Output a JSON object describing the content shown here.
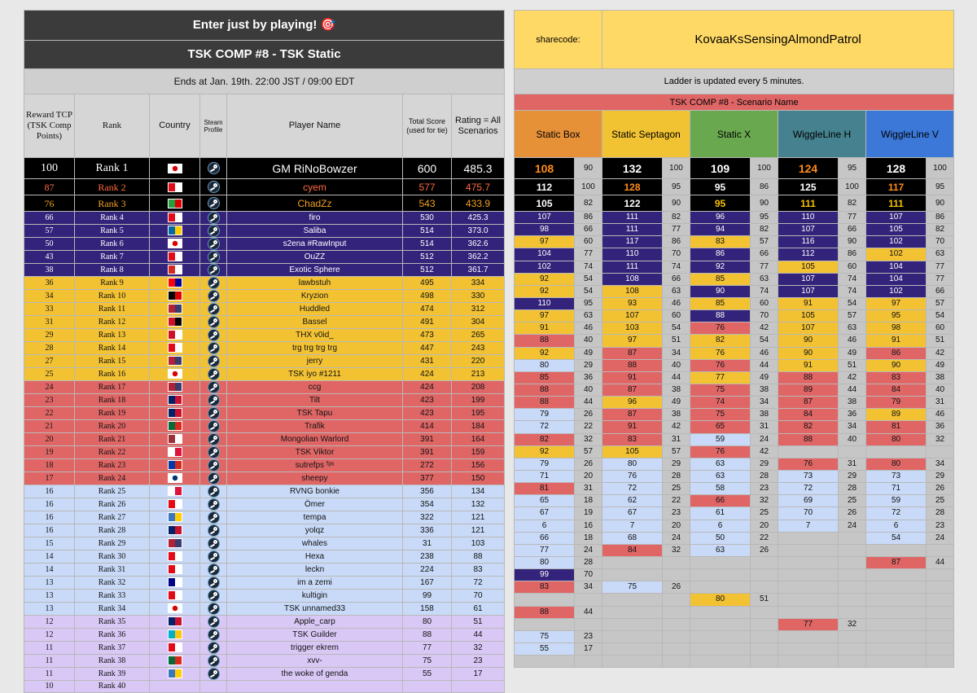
{
  "header": {
    "banner": "Enter just by playing! 🎯",
    "comp_title": "TSK COMP #8 - TSK Static",
    "ends": "Ends at Jan. 19th. 22:00 JST / 09:00 EDT"
  },
  "columns": {
    "reward": "Reward TCP (TSK Comp Points)",
    "rank": "Rank",
    "country": "Country",
    "steam": "Steam Profile",
    "player": "Player Name",
    "total": "Total Score (used for tie)",
    "rating": "Rating = All Scenarios"
  },
  "colors": {
    "black": "#000000",
    "purple": "#33237a",
    "yellow": "#f3c233",
    "red": "#e06666",
    "blue": "#c9daf8",
    "lavender": "#d9c8f6"
  },
  "players": [
    {
      "tcp": "100",
      "rank": "Rank 1",
      "country": "Japan",
      "name": "GM RiNoBowzer",
      "total": "600",
      "rating": "485.3",
      "tier": "black"
    },
    {
      "tcp": "87",
      "rank": "Rank 2",
      "country": "Turkey",
      "name": "cyem",
      "total": "577",
      "rating": "475.7",
      "tier": "black"
    },
    {
      "tcp": "76",
      "rank": "Rank 3",
      "country": "Iran",
      "name": "ChadZz",
      "total": "543",
      "rating": "433.9",
      "tier": "black"
    },
    {
      "tcp": "66",
      "rank": "Rank 4",
      "country": "Turkey",
      "name": "firo",
      "total": "530",
      "rating": "425.3",
      "tier": "purple"
    },
    {
      "tcp": "57",
      "rank": "Rank 5",
      "country": "Sweden",
      "name": "Saliba",
      "total": "514",
      "rating": "373.0",
      "tier": "purple"
    },
    {
      "tcp": "50",
      "rank": "Rank 6",
      "country": "Japan",
      "name": "s2ena #RawInput",
      "total": "514",
      "rating": "362.6",
      "tier": "purple"
    },
    {
      "tcp": "43",
      "rank": "Rank 7",
      "country": "Turkey",
      "name": "OuZZ",
      "total": "512",
      "rating": "362.2",
      "tier": "purple"
    },
    {
      "tcp": "38",
      "rank": "Rank 8",
      "country": "Canada",
      "name": "Exotic Sphere",
      "total": "512",
      "rating": "361.7",
      "tier": "purple"
    },
    {
      "tcp": "36",
      "rank": "Rank 9",
      "country": "Taiwan",
      "name": "lawbstuh",
      "total": "495",
      "rating": "334",
      "tier": "yellow"
    },
    {
      "tcp": "34",
      "rank": "Rank 10",
      "country": "Germany",
      "name": "Kryzion",
      "total": "498",
      "rating": "330",
      "tier": "yellow"
    },
    {
      "tcp": "33",
      "rank": "Rank 11",
      "country": "USA",
      "name": "Huddled",
      "total": "474",
      "rating": "312",
      "tier": "yellow"
    },
    {
      "tcp": "31",
      "rank": "Rank 12",
      "country": "Egypt",
      "name": "Bassel",
      "total": "491",
      "rating": "304",
      "tier": "yellow"
    },
    {
      "tcp": "29",
      "rank": "Rank 13",
      "country": "Bahrain",
      "name": "THX v0id_",
      "total": "473",
      "rating": "265",
      "tier": "yellow"
    },
    {
      "tcp": "28",
      "rank": "Rank 14",
      "country": "Turkey",
      "name": "trg trg trg trg",
      "total": "447",
      "rating": "243",
      "tier": "yellow"
    },
    {
      "tcp": "27",
      "rank": "Rank 15",
      "country": "USA",
      "name": "jerry",
      "total": "431",
      "rating": "220",
      "tier": "yellow"
    },
    {
      "tcp": "25",
      "rank": "Rank 16",
      "country": "Japan",
      "name": "TSK iyo #1211",
      "total": "424",
      "rating": "213",
      "tier": "yellow"
    },
    {
      "tcp": "24",
      "rank": "Rank 17",
      "country": "USA",
      "name": "ccg",
      "total": "424",
      "rating": "208",
      "tier": "red"
    },
    {
      "tcp": "23",
      "rank": "Rank 18",
      "country": "UK",
      "name": "Tilt",
      "total": "423",
      "rating": "199",
      "tier": "red"
    },
    {
      "tcp": "22",
      "rank": "Rank 19",
      "country": "UK",
      "name": "TSK Tapu",
      "total": "423",
      "rating": "195",
      "tier": "red"
    },
    {
      "tcp": "21",
      "rank": "Rank 20",
      "country": "Portugal",
      "name": "Trafik",
      "total": "414",
      "rating": "184",
      "tier": "red"
    },
    {
      "tcp": "20",
      "rank": "Rank 21",
      "country": "Latvia",
      "name": "Mongolian Warlord",
      "total": "391",
      "rating": "164",
      "tier": "red"
    },
    {
      "tcp": "19",
      "rank": "Rank 22",
      "country": "Poland",
      "name": "TSK Viktor",
      "total": "391",
      "rating": "159",
      "tier": "red"
    },
    {
      "tcp": "18",
      "rank": "Rank 23",
      "country": "Chile",
      "name": "sutrefps ᶠᵖˢ",
      "total": "272",
      "rating": "156",
      "tier": "red"
    },
    {
      "tcp": "17",
      "rank": "Rank 24",
      "country": "Korea",
      "name": "sheepy",
      "total": "377",
      "rating": "150",
      "tier": "red"
    },
    {
      "tcp": "16",
      "rank": "Rank 25",
      "country": "Poland",
      "name": "RVNG bonkie",
      "total": "356",
      "rating": "134",
      "tier": "blue"
    },
    {
      "tcp": "16",
      "rank": "Rank 26",
      "country": "Turkey",
      "name": "Ömer",
      "total": "354",
      "rating": "132",
      "tier": "blue"
    },
    {
      "tcp": "16",
      "rank": "Rank 27",
      "country": "Other",
      "name": "tempa",
      "total": "322",
      "rating": "121",
      "tier": "blue"
    },
    {
      "tcp": "16",
      "rank": "Rank 28",
      "country": "UK",
      "name": "yolqz",
      "total": "336",
      "rating": "121",
      "tier": "blue"
    },
    {
      "tcp": "15",
      "rank": "Rank 29",
      "country": "USA",
      "name": "whales",
      "total": "31",
      "rating": "103",
      "tier": "blue"
    },
    {
      "tcp": "14",
      "rank": "Rank 30",
      "country": "Turkey",
      "name": "Hexa",
      "total": "238",
      "rating": "88",
      "tier": "blue"
    },
    {
      "tcp": "14",
      "rank": "Rank 31",
      "country": "Turkey",
      "name": "leckn",
      "total": "224",
      "rating": "83",
      "tier": "blue"
    },
    {
      "tcp": "13",
      "rank": "Rank 32",
      "country": "Australia",
      "name": "im a zemi",
      "total": "167",
      "rating": "72",
      "tier": "blue"
    },
    {
      "tcp": "13",
      "rank": "Rank 33",
      "country": "Turkey",
      "name": "kultigin",
      "total": "99",
      "rating": "70",
      "tier": "blue"
    },
    {
      "tcp": "13",
      "rank": "Rank 34",
      "country": "Japan",
      "name": "TSK unnamed33",
      "total": "158",
      "rating": "61",
      "tier": "blue"
    },
    {
      "tcp": "12",
      "rank": "Rank 35",
      "country": "UK",
      "name": "Apple_carp",
      "total": "80",
      "rating": "51",
      "tier": "lav"
    },
    {
      "tcp": "12",
      "rank": "Rank 36",
      "country": "Kazakhstan",
      "name": "TSK Guilder",
      "total": "88",
      "rating": "44",
      "tier": "lav"
    },
    {
      "tcp": "11",
      "rank": "Rank 37",
      "country": "Turkey",
      "name": "trigger ekrem",
      "total": "77",
      "rating": "32",
      "tier": "lav"
    },
    {
      "tcp": "11",
      "rank": "Rank 38",
      "country": "Portugal",
      "name": "xvv-",
      "total": "75",
      "rating": "23",
      "tier": "lav"
    },
    {
      "tcp": "11",
      "rank": "Rank 39",
      "country": "Other",
      "name": "the woke of genda",
      "total": "55",
      "rating": "17",
      "tier": "lav"
    },
    {
      "tcp": "10",
      "rank": "Rank 40",
      "country": "",
      "name": "",
      "total": "",
      "rating": "",
      "tier": "lav"
    }
  ],
  "right_panel": {
    "sharecode_label": "sharecode:",
    "sharecode": "KovaaKsSensingAlmondPatrol",
    "ladder_note": "Ladder is updated every 5 minutes.",
    "scenario_header": "TSK COMP #8 - Scenario Name",
    "scenarios": [
      "Static Box",
      "Static Septagon",
      "Static X",
      "WiggleLine H",
      "WiggleLine V"
    ],
    "rows": [
      [
        [
          "108",
          "90"
        ],
        [
          "132",
          "100"
        ],
        [
          "109",
          "100"
        ],
        [
          "124",
          "95"
        ],
        [
          "128",
          "100"
        ]
      ],
      [
        [
          "112",
          "100"
        ],
        [
          "128",
          "95"
        ],
        [
          "95",
          "86"
        ],
        [
          "125",
          "100"
        ],
        [
          "117",
          "95"
        ]
      ],
      [
        [
          "105",
          "82"
        ],
        [
          "122",
          "90"
        ],
        [
          "95",
          "90"
        ],
        [
          "111",
          "82"
        ],
        [
          "111",
          "90"
        ]
      ],
      [
        [
          "107",
          "86"
        ],
        [
          "111",
          "82"
        ],
        [
          "96",
          "95"
        ],
        [
          "110",
          "77"
        ],
        [
          "107",
          "86"
        ]
      ],
      [
        [
          "98",
          "66"
        ],
        [
          "111",
          "77"
        ],
        [
          "94",
          "82"
        ],
        [
          "107",
          "66"
        ],
        [
          "105",
          "82"
        ]
      ],
      [
        [
          "97",
          "60"
        ],
        [
          "117",
          "86"
        ],
        [
          "83",
          "57"
        ],
        [
          "116",
          "90"
        ],
        [
          "102",
          "70"
        ]
      ],
      [
        [
          "104",
          "77"
        ],
        [
          "110",
          "70"
        ],
        [
          "86",
          "66"
        ],
        [
          "112",
          "86"
        ],
        [
          "102",
          "63"
        ]
      ],
      [
        [
          "102",
          "74"
        ],
        [
          "111",
          "74"
        ],
        [
          "92",
          "77"
        ],
        [
          "105",
          "60"
        ],
        [
          "104",
          "77"
        ]
      ],
      [
        [
          "92",
          "54"
        ],
        [
          "108",
          "66"
        ],
        [
          "85",
          "63"
        ],
        [
          "107",
          "74"
        ],
        [
          "104",
          "77"
        ]
      ],
      [
        [
          "92",
          "54"
        ],
        [
          "108",
          "63"
        ],
        [
          "90",
          "74"
        ],
        [
          "107",
          "74"
        ],
        [
          "102",
          "66"
        ]
      ],
      [
        [
          "110",
          "95"
        ],
        [
          "93",
          "46"
        ],
        [
          "85",
          "60"
        ],
        [
          "91",
          "54"
        ],
        [
          "97",
          "57"
        ]
      ],
      [
        [
          "97",
          "63"
        ],
        [
          "107",
          "60"
        ],
        [
          "88",
          "70"
        ],
        [
          "105",
          "57"
        ],
        [
          "95",
          "54"
        ]
      ],
      [
        [
          "91",
          "46"
        ],
        [
          "103",
          "54"
        ],
        [
          "76",
          "42"
        ],
        [
          "107",
          "63"
        ],
        [
          "98",
          "60"
        ]
      ],
      [
        [
          "88",
          "40"
        ],
        [
          "97",
          "51"
        ],
        [
          "82",
          "54"
        ],
        [
          "90",
          "46"
        ],
        [
          "91",
          "51"
        ]
      ],
      [
        [
          "92",
          "49"
        ],
        [
          "87",
          "34"
        ],
        [
          "76",
          "46"
        ],
        [
          "90",
          "49"
        ],
        [
          "86",
          "42"
        ]
      ],
      [
        [
          "80",
          "29"
        ],
        [
          "88",
          "40"
        ],
        [
          "76",
          "44"
        ],
        [
          "91",
          "51"
        ],
        [
          "90",
          "49"
        ]
      ],
      [
        [
          "85",
          "36"
        ],
        [
          "91",
          "44"
        ],
        [
          "77",
          "49"
        ],
        [
          "88",
          "42"
        ],
        [
          "83",
          "38"
        ]
      ],
      [
        [
          "88",
          "40"
        ],
        [
          "87",
          "38"
        ],
        [
          "75",
          "38"
        ],
        [
          "89",
          "44"
        ],
        [
          "84",
          "40"
        ]
      ],
      [
        [
          "88",
          "44"
        ],
        [
          "96",
          "49"
        ],
        [
          "74",
          "34"
        ],
        [
          "87",
          "38"
        ],
        [
          "79",
          "31"
        ]
      ],
      [
        [
          "79",
          "26"
        ],
        [
          "87",
          "38"
        ],
        [
          "75",
          "38"
        ],
        [
          "84",
          "36"
        ],
        [
          "89",
          "46"
        ]
      ],
      [
        [
          "72",
          "22"
        ],
        [
          "91",
          "42"
        ],
        [
          "65",
          "31"
        ],
        [
          "82",
          "34"
        ],
        [
          "81",
          "36"
        ]
      ],
      [
        [
          "82",
          "32"
        ],
        [
          "83",
          "31"
        ],
        [
          "59",
          "24"
        ],
        [
          "88",
          "40"
        ],
        [
          "80",
          "32"
        ]
      ],
      [
        [
          "92",
          "57"
        ],
        [
          "105",
          "57"
        ],
        [
          "76",
          "42"
        ],
        [
          "",
          ""
        ],
        [
          "",
          ""
        ]
      ],
      [
        [
          "79",
          "26"
        ],
        [
          "80",
          "29"
        ],
        [
          "63",
          "29"
        ],
        [
          "76",
          "31"
        ],
        [
          "80",
          "34"
        ]
      ],
      [
        [
          "71",
          "20"
        ],
        [
          "76",
          "28"
        ],
        [
          "63",
          "28"
        ],
        [
          "73",
          "29"
        ],
        [
          "73",
          "29"
        ]
      ],
      [
        [
          "81",
          "31"
        ],
        [
          "72",
          "25"
        ],
        [
          "58",
          "23"
        ],
        [
          "72",
          "28"
        ],
        [
          "71",
          "26"
        ]
      ],
      [
        [
          "65",
          "18"
        ],
        [
          "62",
          "22"
        ],
        [
          "66",
          "32"
        ],
        [
          "69",
          "25"
        ],
        [
          "59",
          "25"
        ]
      ],
      [
        [
          "67",
          "19"
        ],
        [
          "67",
          "23"
        ],
        [
          "61",
          "25"
        ],
        [
          "70",
          "26"
        ],
        [
          "72",
          "28"
        ]
      ],
      [
        [
          "6",
          "16"
        ],
        [
          "7",
          "20"
        ],
        [
          "6",
          "20"
        ],
        [
          "7",
          "24"
        ],
        [
          "6",
          "23"
        ]
      ],
      [
        [
          "66",
          "18"
        ],
        [
          "68",
          "24"
        ],
        [
          "50",
          "22"
        ],
        [
          "",
          ""
        ],
        [
          "54",
          "24"
        ]
      ],
      [
        [
          "77",
          "24"
        ],
        [
          "84",
          "32"
        ],
        [
          "63",
          "26"
        ],
        [
          "",
          ""
        ],
        [
          "",
          ""
        ]
      ],
      [
        [
          "80",
          "28"
        ],
        [
          "",
          ""
        ],
        [
          "",
          ""
        ],
        [
          "",
          ""
        ],
        [
          "87",
          "44"
        ]
      ],
      [
        [
          "99",
          "70"
        ],
        [
          "",
          ""
        ],
        [
          "",
          ""
        ],
        [
          "",
          ""
        ],
        [
          "",
          ""
        ]
      ],
      [
        [
          "83",
          "34"
        ],
        [
          "75",
          "26"
        ],
        [
          "",
          ""
        ],
        [
          "",
          ""
        ],
        [
          "",
          ""
        ]
      ],
      [
        [
          "",
          ""
        ],
        [
          "",
          ""
        ],
        [
          "80",
          "51"
        ],
        [
          "",
          ""
        ],
        [
          "",
          ""
        ]
      ],
      [
        [
          "88",
          "44"
        ],
        [
          "",
          ""
        ],
        [
          "",
          ""
        ],
        [
          "",
          ""
        ],
        [
          "",
          ""
        ]
      ],
      [
        [
          "",
          ""
        ],
        [
          "",
          ""
        ],
        [
          "",
          ""
        ],
        [
          "77",
          "32"
        ],
        [
          "",
          ""
        ]
      ],
      [
        [
          "75",
          "23"
        ],
        [
          "",
          ""
        ],
        [
          "",
          ""
        ],
        [
          "",
          ""
        ],
        [
          "",
          ""
        ]
      ],
      [
        [
          "55",
          "17"
        ],
        [
          "",
          ""
        ],
        [
          "",
          ""
        ],
        [
          "",
          ""
        ],
        [
          "",
          ""
        ]
      ],
      [
        [
          "",
          ""
        ],
        [
          "",
          ""
        ],
        [
          "",
          ""
        ],
        [
          "",
          ""
        ],
        [
          "",
          ""
        ]
      ]
    ]
  }
}
